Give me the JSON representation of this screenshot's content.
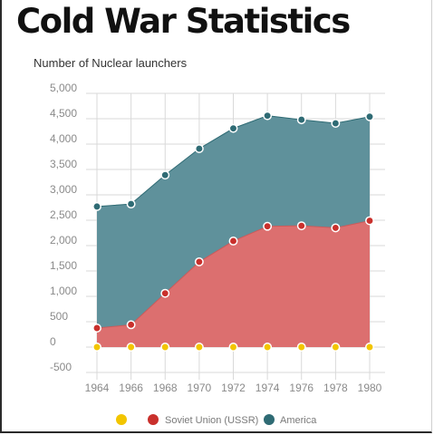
{
  "title": "Cold War Statistics",
  "colors": {
    "ussr_fill": "#dc6f6f",
    "ussr_point": "#c9302c",
    "america_fill": "#5f919b",
    "america_point": "#2f6b74",
    "zero_series_point": "#f2c500",
    "grid": "#d9d9d9"
  },
  "chart_data": {
    "type": "area",
    "stacked": true,
    "ylabel": "Number of Nuclear launchers",
    "xlabel": "",
    "x": [
      1964,
      1966,
      1968,
      1970,
      1972,
      1974,
      1976,
      1978,
      1980
    ],
    "ylim": [
      -500,
      5000
    ],
    "yticks": [
      "5,000",
      "4,500",
      "4,000",
      "3,500",
      "3,000",
      "2,500",
      "2,000",
      "1,500",
      "1,000",
      "500",
      "0",
      "-500"
    ],
    "ytick_values": [
      5000,
      4500,
      4000,
      3500,
      3000,
      2500,
      2000,
      1500,
      1000,
      500,
      0,
      -500
    ],
    "xticks": [
      "1964",
      "1966",
      "1968",
      "1970",
      "1972",
      "1974",
      "1976",
      "1978",
      "1980"
    ],
    "grid": true,
    "legend_position": "bottom",
    "series": [
      {
        "name": "",
        "values": [
          0,
          0,
          0,
          0,
          0,
          0,
          0,
          0,
          0
        ]
      },
      {
        "name": "Soviet Union (USSR)",
        "values": [
          375,
          440,
          1060,
          1680,
          2090,
          2380,
          2390,
          2350,
          2490
        ]
      },
      {
        "name": "America",
        "values": [
          2770,
          2820,
          3390,
          3910,
          4310,
          4560,
          4480,
          4410,
          4540
        ]
      }
    ]
  }
}
